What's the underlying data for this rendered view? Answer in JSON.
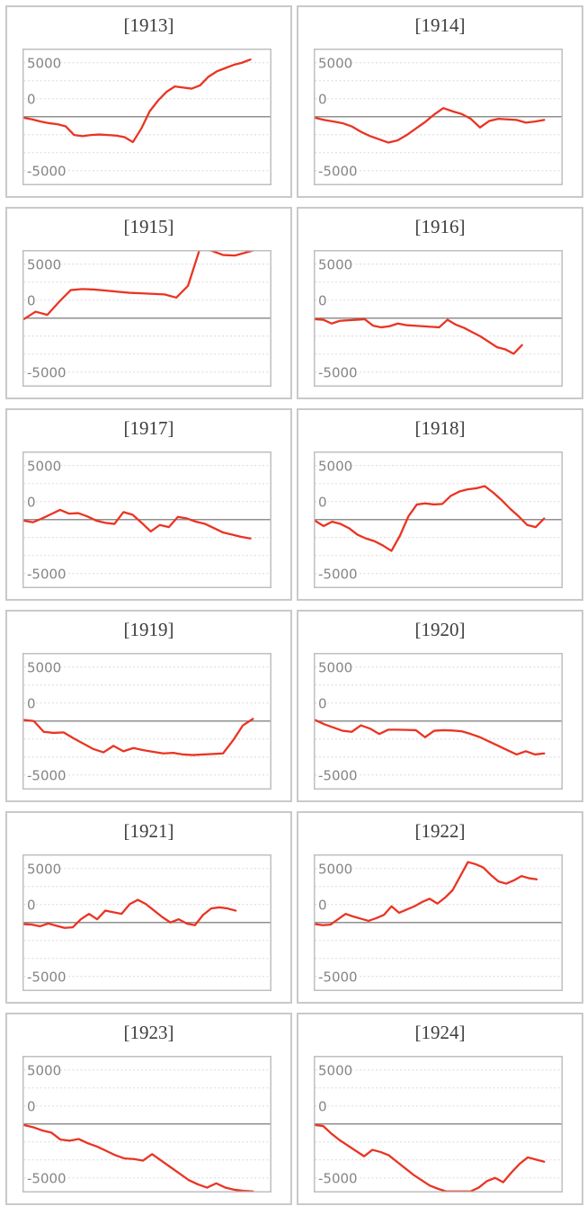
{
  "page": {
    "background": "#ffffff",
    "description": "Small-multiples panel of 12 yearly line charts"
  },
  "styles": {
    "panel_border_color": "#c9c9c9",
    "plot_border_color": "#bfbfbf",
    "gridline_color": "#d9d9d9",
    "zero_line_color": "#8f8f8f",
    "series_color": "#ea3423",
    "tick_label_color": "#858585",
    "title_color": "#3d3d3d"
  },
  "chart_data": {
    "type": "line",
    "layout": "2x6 grid of small multiples, one panel per year",
    "legend": "none",
    "grid": "horizontal dashed gridlines, solid zero line",
    "y_axis": {
      "tick_labels": [
        "5000",
        "0",
        "-5000"
      ],
      "tick_values": [
        5000,
        0,
        -5000
      ],
      "ylim": [
        -6250,
        6250
      ]
    },
    "x_axis": {
      "tick_labels": [],
      "note": "unlabeled time axis within each year"
    },
    "panels": [
      {
        "title": "[1913]",
        "x_end": 0.92,
        "values": [
          -100,
          -250,
          -450,
          -600,
          -700,
          -900,
          -1700,
          -1800,
          -1700,
          -1650,
          -1700,
          -1750,
          -1900,
          -2350,
          -1100,
          500,
          1500,
          2300,
          2800,
          2700,
          2600,
          2900,
          3700,
          4200,
          4500,
          4800,
          5000,
          5300
        ]
      },
      {
        "title": "[1914]",
        "x_end": 0.93,
        "values": [
          -100,
          -300,
          -450,
          -600,
          -900,
          -1400,
          -1800,
          -2100,
          -2400,
          -2200,
          -1700,
          -1100,
          -500,
          200,
          800,
          500,
          250,
          -200,
          -1000,
          -400,
          -200,
          -250,
          -300,
          -550,
          -450,
          -300
        ]
      },
      {
        "title": "[1915]",
        "x_end": 1.0,
        "values": [
          -100,
          600,
          300,
          1500,
          2600,
          2700,
          2650,
          2550,
          2450,
          2350,
          2300,
          2250,
          2200,
          1900,
          3000,
          6400,
          6250,
          5850,
          5800,
          6100,
          6400,
          6450
        ]
      },
      {
        "title": "[1916]",
        "x_end": 0.84,
        "values": [
          -100,
          -150,
          -500,
          -250,
          -200,
          -150,
          -100,
          -700,
          -850,
          -750,
          -500,
          -650,
          -700,
          -750,
          -800,
          -850,
          -150,
          -600,
          -900,
          -1300,
          -1700,
          -2200,
          -2700,
          -2900,
          -3300,
          -2500
        ]
      },
      {
        "title": "[1917]",
        "x_end": 0.92,
        "values": [
          -100,
          -250,
          100,
          500,
          900,
          550,
          600,
          300,
          -100,
          -300,
          -400,
          700,
          450,
          -300,
          -1100,
          -500,
          -700,
          250,
          100,
          -200,
          -400,
          -800,
          -1200,
          -1400,
          -1600,
          -1750
        ]
      },
      {
        "title": "[1918]",
        "x_end": 0.93,
        "values": [
          -100,
          -600,
          -200,
          -400,
          -800,
          -1400,
          -1750,
          -2000,
          -2400,
          -2900,
          -1500,
          300,
          1400,
          1500,
          1400,
          1450,
          2200,
          2600,
          2800,
          2900,
          3100,
          2500,
          1800,
          1000,
          300,
          -500,
          -700,
          100
        ]
      },
      {
        "title": "[1919]",
        "x_end": 0.93,
        "values": [
          100,
          0,
          -1000,
          -1100,
          -1050,
          -1600,
          -2100,
          -2600,
          -2900,
          -2300,
          -2800,
          -2500,
          -2700,
          -2850,
          -3000,
          -2950,
          -3100,
          -3150,
          -3100,
          -3050,
          -3000,
          -1800,
          -400,
          200
        ]
      },
      {
        "title": "[1920]",
        "x_end": 0.93,
        "values": [
          100,
          -300,
          -600,
          -900,
          -1000,
          -400,
          -700,
          -1200,
          -800,
          -800,
          -820,
          -850,
          -1500,
          -900,
          -850,
          -880,
          -950,
          -1200,
          -1500,
          -1900,
          -2300,
          -2700,
          -3100,
          -2800,
          -3100,
          -3000
        ]
      },
      {
        "title": "[1921]",
        "x_end": 0.86,
        "values": [
          -150,
          -200,
          -350,
          -100,
          -300,
          -500,
          -450,
          300,
          800,
          300,
          1100,
          950,
          800,
          1700,
          2100,
          1700,
          1100,
          500,
          0,
          300,
          -100,
          -250,
          700,
          1300,
          1400,
          1300,
          1100
        ]
      },
      {
        "title": "[1922]",
        "x_end": 0.9,
        "values": [
          -150,
          -250,
          -200,
          300,
          800,
          550,
          350,
          150,
          400,
          700,
          1500,
          900,
          1200,
          1500,
          1900,
          2200,
          1750,
          2300,
          3000,
          4300,
          5600,
          5400,
          5100,
          4400,
          3800,
          3600,
          3900,
          4300,
          4100,
          4000
        ]
      },
      {
        "title": "[1923]",
        "x_end": 0.93,
        "values": [
          -100,
          -300,
          -600,
          -800,
          -1450,
          -1550,
          -1400,
          -1800,
          -2100,
          -2500,
          -2900,
          -3200,
          -3250,
          -3400,
          -2800,
          -3400,
          -4000,
          -4600,
          -5200,
          -5600,
          -5900,
          -5500,
          -5900,
          -6100,
          -6200,
          -6250
        ]
      },
      {
        "title": "[1924]",
        "x_end": 0.93,
        "values": [
          -100,
          -200,
          -900,
          -1500,
          -2000,
          -2500,
          -3000,
          -2400,
          -2600,
          -2900,
          -3500,
          -4100,
          -4700,
          -5200,
          -5700,
          -6000,
          -6250,
          -6250,
          -6250,
          -6250,
          -5900,
          -5300,
          -5000,
          -5400,
          -4500,
          -3700,
          -3100,
          -3300,
          -3500
        ]
      }
    ]
  }
}
